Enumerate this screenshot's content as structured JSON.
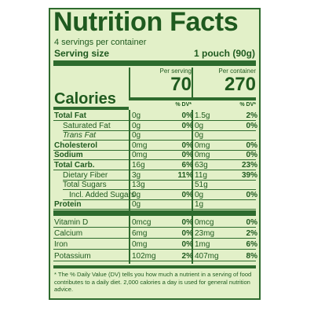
{
  "title": "Nutrition Facts",
  "servings_per_container": "4 servings per container",
  "serving_size": {
    "label": "Serving size",
    "value": "1 pouch (90g)"
  },
  "columns": {
    "per_serving": {
      "header": "Per serving",
      "calories": "70",
      "dv_header": "% DV*"
    },
    "per_container": {
      "header": "Per container",
      "calories": "270",
      "dv_header": "% DV*"
    }
  },
  "calories_label": "Calories",
  "nutrients": [
    {
      "name": "Total Fat",
      "style": "bold",
      "serv_amt": "0g",
      "serv_dv": "0%",
      "cont_amt": "1.5g",
      "cont_dv": "2%"
    },
    {
      "name": "Saturated Fat",
      "style": "indent",
      "serv_amt": "0g",
      "serv_dv": "0%",
      "cont_amt": "0g",
      "cont_dv": "0%"
    },
    {
      "name": "Trans Fat",
      "style": "indent-italic",
      "serv_amt": "0g",
      "serv_dv": "",
      "cont_amt": "0g",
      "cont_dv": ""
    },
    {
      "name": "Cholesterol",
      "style": "bold",
      "serv_amt": "0mg",
      "serv_dv": "0%",
      "cont_amt": "0mg",
      "cont_dv": "0%"
    },
    {
      "name": "Sodium",
      "style": "bold",
      "serv_amt": "0mg",
      "serv_dv": "0%",
      "cont_amt": "0mg",
      "cont_dv": "0%"
    },
    {
      "name": "Total Carb.",
      "style": "bold",
      "serv_amt": "16g",
      "serv_dv": "6%",
      "cont_amt": "63g",
      "cont_dv": "23%"
    },
    {
      "name": "Dietary Fiber",
      "style": "indent",
      "serv_amt": "3g",
      "serv_dv": "11%",
      "cont_amt": "11g",
      "cont_dv": "39%"
    },
    {
      "name": "Total Sugars",
      "style": "indent",
      "serv_amt": "13g",
      "serv_dv": "",
      "cont_amt": "51g",
      "cont_dv": ""
    },
    {
      "name": "Incl. Added Sugars",
      "style": "indent2",
      "serv_amt": "0g",
      "serv_dv": "0%",
      "cont_amt": "0g",
      "cont_dv": "0%"
    },
    {
      "name": "Protein",
      "style": "bold",
      "serv_amt": "0g",
      "serv_dv": "",
      "cont_amt": "1g",
      "cont_dv": ""
    }
  ],
  "vitamins": [
    {
      "name": "Vitamin D",
      "serv_amt": "0mcg",
      "serv_dv": "0%",
      "cont_amt": "0mcg",
      "cont_dv": "0%"
    },
    {
      "name": "Calcium",
      "serv_amt": "6mg",
      "serv_dv": "0%",
      "cont_amt": "23mg",
      "cont_dv": "2%"
    },
    {
      "name": "Iron",
      "serv_amt": "0mg",
      "serv_dv": "0%",
      "cont_amt": "1mg",
      "cont_dv": "6%"
    },
    {
      "name": "Potassium",
      "serv_amt": "102mg",
      "serv_dv": "2%",
      "cont_amt": "407mg",
      "cont_dv": "8%"
    }
  ],
  "footnote": "* The % Daily Value (DV) tells you how much a nutrient in a serving of food contributes to a daily diet. 2,000 calories a day is used for general nutrition advice.",
  "colors": {
    "background": "#e2f0c8",
    "text": "#1f5a1f",
    "rule": "#2e6b2e"
  }
}
